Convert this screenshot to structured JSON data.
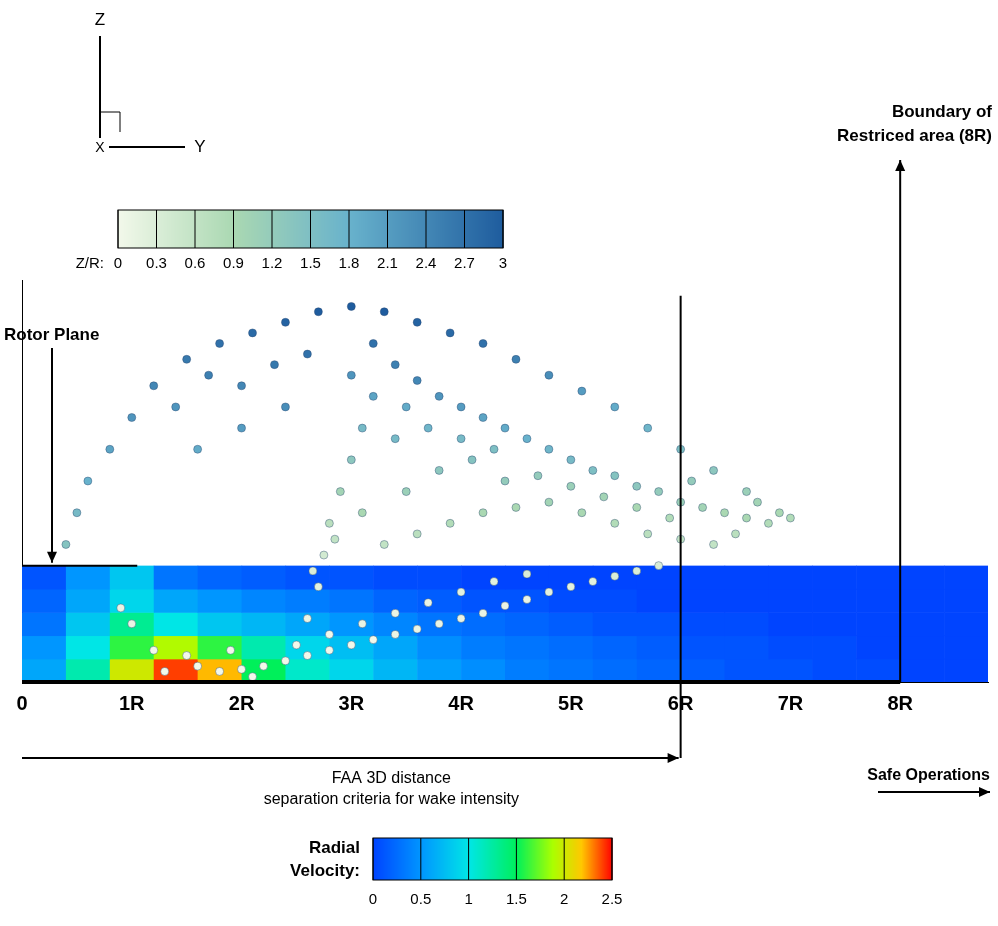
{
  "chart_data": {
    "type": "scatter",
    "xlim": [
      0,
      8.8
    ],
    "xticks": [
      0,
      {
        "value": 1,
        "label": "1R"
      },
      {
        "value": 2,
        "label": "2R"
      },
      {
        "value": 3,
        "label": "3R"
      },
      {
        "value": 4,
        "label": "4R"
      },
      {
        "value": 5,
        "label": "5R"
      },
      {
        "value": 6,
        "label": "6R"
      },
      {
        "value": 7,
        "label": "7R"
      },
      {
        "value": 8,
        "label": "8R"
      }
    ],
    "ylim": [
      0,
      3.8
    ],
    "tick_labels": "x",
    "grid": false,
    "triad": [
      "Z",
      "Y",
      "X"
    ],
    "particles": {
      "colorbar": {
        "label": "Z/R:",
        "range": [
          0,
          3
        ],
        "ticks": [
          0,
          0.3,
          0.6,
          0.9,
          1.2,
          1.5,
          1.8,
          2.1,
          2.4,
          2.7,
          3
        ]
      },
      "points": [
        [
          1.6,
          0.15,
          0
        ],
        [
          1.8,
          0.1,
          0
        ],
        [
          2.0,
          0.12,
          0
        ],
        [
          2.2,
          0.15,
          0
        ],
        [
          2.4,
          0.2,
          0
        ],
        [
          2.6,
          0.25,
          0
        ],
        [
          2.8,
          0.3,
          0
        ],
        [
          3.0,
          0.35,
          0
        ],
        [
          3.2,
          0.4,
          0
        ],
        [
          3.4,
          0.45,
          0.1
        ],
        [
          3.6,
          0.5,
          0.1
        ],
        [
          3.8,
          0.55,
          0.1
        ],
        [
          4.0,
          0.6,
          0.1
        ],
        [
          4.2,
          0.65,
          0.1
        ],
        [
          4.4,
          0.72,
          0.1
        ],
        [
          4.6,
          0.78,
          0.1
        ],
        [
          4.8,
          0.85,
          0.2
        ],
        [
          5.0,
          0.9,
          0.2
        ],
        [
          5.2,
          0.95,
          0.2
        ],
        [
          5.4,
          1.0,
          0.3
        ],
        [
          5.6,
          1.05,
          0.3
        ],
        [
          5.8,
          1.1,
          0.3
        ],
        [
          2.5,
          0.35,
          0
        ],
        [
          2.8,
          0.45,
          0
        ],
        [
          3.1,
          0.55,
          0.1
        ],
        [
          3.4,
          0.65,
          0.1
        ],
        [
          3.7,
          0.75,
          0.1
        ],
        [
          4.0,
          0.85,
          0.2
        ],
        [
          4.3,
          0.95,
          0.2
        ],
        [
          4.6,
          1.02,
          0.3
        ],
        [
          1.3,
          0.1,
          0
        ],
        [
          1.5,
          0.25,
          0
        ],
        [
          1.9,
          0.3,
          0
        ],
        [
          2.1,
          0.05,
          0
        ],
        [
          0.9,
          0.7,
          0.1
        ],
        [
          1.0,
          0.55,
          0.1
        ],
        [
          1.2,
          0.3,
          0
        ],
        [
          2.6,
          0.6,
          0.1
        ],
        [
          2.7,
          0.9,
          0.2
        ],
        [
          2.75,
          1.2,
          0.4
        ],
        [
          2.8,
          1.5,
          0.7
        ],
        [
          2.9,
          1.8,
          1.0
        ],
        [
          3.0,
          2.1,
          1.3
        ],
        [
          3.1,
          2.4,
          1.6
        ],
        [
          2.65,
          1.05,
          0.3
        ],
        [
          2.85,
          1.35,
          0.6
        ],
        [
          0.4,
          1.3,
          1.4
        ],
        [
          0.5,
          1.6,
          1.6
        ],
        [
          0.6,
          1.9,
          1.8
        ],
        [
          0.8,
          2.2,
          2.0
        ],
        [
          1.0,
          2.5,
          2.2
        ],
        [
          1.2,
          2.8,
          2.4
        ],
        [
          1.5,
          3.05,
          2.6
        ],
        [
          1.8,
          3.2,
          2.7
        ],
        [
          2.1,
          3.3,
          2.8
        ],
        [
          2.4,
          3.4,
          2.9
        ],
        [
          2.7,
          3.5,
          3.0
        ],
        [
          3.0,
          3.55,
          3.0
        ],
        [
          3.3,
          3.5,
          3.0
        ],
        [
          3.6,
          3.4,
          2.9
        ],
        [
          3.9,
          3.3,
          2.8
        ],
        [
          4.2,
          3.2,
          2.7
        ],
        [
          4.5,
          3.05,
          2.5
        ],
        [
          4.8,
          2.9,
          2.3
        ],
        [
          5.1,
          2.75,
          2.1
        ],
        [
          5.4,
          2.6,
          1.9
        ],
        [
          5.7,
          2.4,
          1.7
        ],
        [
          6.0,
          2.2,
          1.5
        ],
        [
          6.3,
          2.0,
          1.3
        ],
        [
          6.6,
          1.8,
          1.1
        ],
        [
          6.9,
          1.6,
          0.9
        ],
        [
          7.0,
          1.55,
          0.8
        ],
        [
          1.4,
          2.6,
          2.2
        ],
        [
          1.7,
          2.9,
          2.5
        ],
        [
          2.0,
          2.8,
          2.4
        ],
        [
          2.3,
          3.0,
          2.6
        ],
        [
          2.6,
          3.1,
          2.7
        ],
        [
          2.0,
          2.4,
          2.1
        ],
        [
          1.6,
          2.2,
          1.9
        ],
        [
          2.4,
          2.6,
          2.3
        ],
        [
          3.2,
          3.2,
          2.7
        ],
        [
          3.4,
          3.0,
          2.5
        ],
        [
          3.6,
          2.85,
          2.4
        ],
        [
          3.8,
          2.7,
          2.2
        ],
        [
          4.0,
          2.6,
          2.1
        ],
        [
          4.2,
          2.5,
          2.0
        ],
        [
          4.4,
          2.4,
          1.9
        ],
        [
          4.6,
          2.3,
          1.8
        ],
        [
          4.8,
          2.2,
          1.7
        ],
        [
          5.0,
          2.1,
          1.6
        ],
        [
          5.2,
          2.0,
          1.5
        ],
        [
          5.4,
          1.95,
          1.4
        ],
        [
          5.6,
          1.85,
          1.3
        ],
        [
          5.8,
          1.8,
          1.2
        ],
        [
          6.0,
          1.7,
          1.1
        ],
        [
          6.2,
          1.65,
          1.0
        ],
        [
          6.4,
          1.6,
          0.9
        ],
        [
          6.6,
          1.55,
          0.9
        ],
        [
          6.8,
          1.5,
          0.8
        ],
        [
          3.3,
          1.3,
          0.6
        ],
        [
          3.6,
          1.4,
          0.7
        ],
        [
          3.9,
          1.5,
          0.8
        ],
        [
          4.2,
          1.6,
          0.9
        ],
        [
          4.5,
          1.65,
          0.9
        ],
        [
          4.8,
          1.7,
          1.0
        ],
        [
          5.1,
          1.6,
          0.9
        ],
        [
          5.4,
          1.5,
          0.8
        ],
        [
          5.7,
          1.4,
          0.7
        ],
        [
          6.0,
          1.35,
          0.6
        ],
        [
          6.3,
          1.3,
          0.6
        ],
        [
          3.5,
          1.8,
          1.1
        ],
        [
          3.8,
          2.0,
          1.3
        ],
        [
          4.1,
          2.1,
          1.4
        ],
        [
          4.4,
          1.9,
          1.2
        ],
        [
          4.7,
          1.95,
          1.2
        ],
        [
          5.0,
          1.85,
          1.1
        ],
        [
          5.3,
          1.75,
          1.0
        ],
        [
          5.6,
          1.65,
          0.9
        ],
        [
          5.9,
          1.55,
          0.8
        ],
        [
          3.4,
          2.3,
          1.6
        ],
        [
          3.7,
          2.4,
          1.7
        ],
        [
          4.0,
          2.3,
          1.6
        ],
        [
          4.3,
          2.2,
          1.5
        ],
        [
          3.2,
          2.7,
          2.0
        ],
        [
          3.5,
          2.6,
          1.9
        ],
        [
          3.1,
          1.6,
          0.9
        ],
        [
          3.0,
          2.9,
          2.2
        ],
        [
          6.1,
          1.9,
          1.2
        ],
        [
          6.5,
          1.4,
          0.7
        ],
        [
          6.7,
          1.7,
          1.0
        ]
      ]
    },
    "radial_velocity": {
      "label": [
        "Radial",
        "Velocity:"
      ],
      "range": [
        0,
        2.5
      ],
      "ticks": [
        0,
        0.5,
        1,
        1.5,
        2,
        2.5
      ],
      "x_edges": [
        0,
        0.4,
        0.8,
        1.2,
        1.6,
        2.0,
        2.4,
        2.8,
        3.2,
        3.6,
        4.0,
        4.4,
        4.8,
        5.2,
        5.6,
        6.0,
        6.4,
        6.8,
        7.2,
        7.6,
        8.0,
        8.4,
        8.8
      ],
      "z_edges": [
        0,
        0.22,
        0.44,
        0.66,
        0.88,
        1.1
      ],
      "cells": [
        [
          0.6,
          1.2,
          2.0,
          2.4,
          2.2,
          1.5,
          1.1,
          0.9,
          0.7,
          0.55,
          0.45,
          0.35,
          0.3,
          0.25,
          0.2,
          0.15,
          0.1,
          0.1,
          0.05,
          0.05,
          0,
          0
        ],
        [
          0.5,
          1.0,
          1.6,
          1.9,
          1.6,
          1.2,
          0.9,
          0.75,
          0.6,
          0.45,
          0.35,
          0.3,
          0.25,
          0.2,
          0.15,
          0.1,
          0.1,
          0.05,
          0.05,
          0,
          0,
          0
        ],
        [
          0.3,
          0.8,
          1.3,
          1.0,
          0.8,
          0.7,
          0.6,
          0.5,
          0.4,
          0.3,
          0.25,
          0.2,
          0.15,
          0.1,
          0.1,
          0.05,
          0.05,
          0,
          0,
          0,
          0,
          0
        ],
        [
          0.2,
          0.6,
          0.9,
          0.6,
          0.5,
          0.4,
          0.35,
          0.3,
          0.2,
          0.15,
          0.1,
          0.1,
          0.05,
          0.05,
          0,
          0,
          0,
          0,
          0,
          0,
          0,
          0
        ],
        [
          0.1,
          0.5,
          0.8,
          0.3,
          0.2,
          0.15,
          0.1,
          0.1,
          0.05,
          0.05,
          0,
          0,
          0,
          0,
          0,
          0,
          0,
          0,
          0,
          0,
          0,
          0
        ]
      ]
    },
    "rotor_plane": {
      "text": "Rotor Plane",
      "z": 1.1,
      "x": [
        0,
        1.05
      ]
    },
    "criteria_line": {
      "x": 6,
      "z": [
        0,
        3.65
      ]
    },
    "boundary": {
      "text": [
        "Boundary of",
        "Restriced area (8R)"
      ],
      "x": 8
    },
    "faa": {
      "text": [
        "FAA 3D distance",
        "separation criteria for wake intensity"
      ],
      "x": [
        0,
        6
      ]
    },
    "safe": {
      "text": "Safe Operations"
    }
  }
}
